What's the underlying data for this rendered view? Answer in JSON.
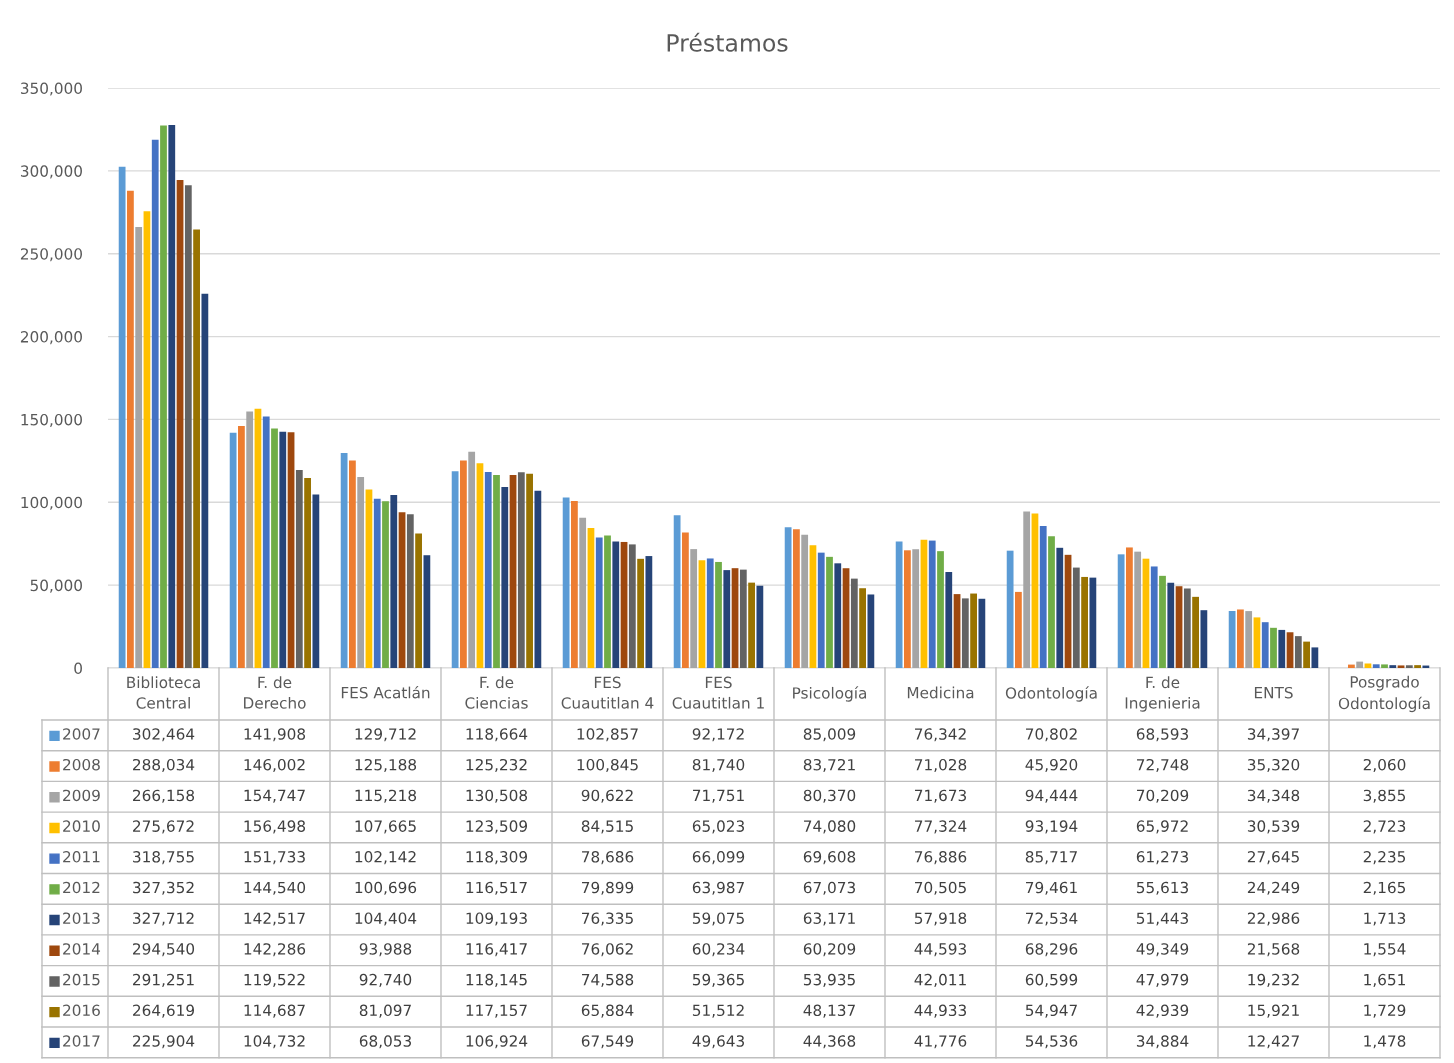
{
  "chart_data": {
    "type": "bar",
    "title": "Préstamos",
    "categories": [
      "Biblioteca\nCentral",
      "F. de\nDerecho",
      "FES Acatlán",
      "F. de\nCiencias",
      "FES\nCuautitlan 4",
      "FES\nCuautitlan 1",
      "Psicología",
      "Medicina",
      "Odontología",
      "F. de\nIngenieria",
      "ENTS",
      "Posgrado\nOdontología"
    ],
    "series": [
      {
        "name": "2007",
        "color": "#5b9bd5",
        "values": [
          302464,
          141908,
          129712,
          118664,
          102857,
          92172,
          85009,
          76342,
          70802,
          68593,
          34397,
          null
        ],
        "value_labels": [
          "302,464",
          "141,908",
          "129,712",
          "118,664",
          "102,857",
          "92,172",
          "85,009",
          "76,342",
          "70,802",
          "68,593",
          "34,397",
          null
        ]
      },
      {
        "name": "2008",
        "color": "#ed7d31",
        "values": [
          288034,
          146002,
          125188,
          125232,
          100845,
          81740,
          83721,
          71028,
          45920,
          72748,
          35320,
          2060
        ],
        "value_labels": [
          "288,034",
          "146,002",
          "125,188",
          "125,232",
          "100,845",
          "81,740",
          "83,721",
          "71,028",
          "45,920",
          "72,748",
          "35,320",
          "2,060"
        ]
      },
      {
        "name": "2009",
        "color": "#a5a5a5",
        "values": [
          266158,
          154747,
          115218,
          130508,
          90622,
          71751,
          80370,
          71673,
          94444,
          70209,
          34348,
          3855
        ],
        "value_labels": [
          "266,158",
          "154,747",
          "115,218",
          "130,508",
          "90,622",
          "71,751",
          "80,370",
          "71,673",
          "94,444",
          "70,209",
          "34,348",
          "3,855"
        ]
      },
      {
        "name": "2010",
        "color": "#ffc000",
        "values": [
          275672,
          156498,
          107665,
          123509,
          84515,
          65023,
          74080,
          77324,
          93194,
          65972,
          30539,
          2723
        ],
        "value_labels": [
          "275,672",
          "156,498",
          "107,665",
          "123,509",
          "84,515",
          "65,023",
          "74,080",
          "77,324",
          "93,194",
          "65,972",
          "30,539",
          "2,723"
        ]
      },
      {
        "name": "2011",
        "color": "#4472c4",
        "values": [
          318755,
          151733,
          102142,
          118309,
          78686,
          66099,
          69608,
          76886,
          85717,
          61273,
          27645,
          2235
        ],
        "value_labels": [
          "318,755",
          "151,733",
          "102,142",
          "118,309",
          "78,686",
          "66,099",
          "69,608",
          "76,886",
          "85,717",
          "61,273",
          "27,645",
          "2,235"
        ]
      },
      {
        "name": "2012",
        "color": "#70ad47",
        "values": [
          327352,
          144540,
          100696,
          116517,
          79899,
          63987,
          67073,
          70505,
          79461,
          55613,
          24249,
          2165
        ],
        "value_labels": [
          "327,352",
          "144,540",
          "100,696",
          "116,517",
          "79,899",
          "63,987",
          "67,073",
          "70,505",
          "79,461",
          "55,613",
          "24,249",
          "2,165"
        ]
      },
      {
        "name": "2013",
        "color": "#264478",
        "values": [
          327712,
          142517,
          104404,
          109193,
          76335,
          59075,
          63171,
          57918,
          72534,
          51443,
          22986,
          1713
        ],
        "value_labels": [
          "327,712",
          "142,517",
          "104,404",
          "109,193",
          "76,335",
          "59,075",
          "63,171",
          "57,918",
          "72,534",
          "51,443",
          "22,986",
          "1,713"
        ]
      },
      {
        "name": "2014",
        "color": "#9e480e",
        "values": [
          294540,
          142286,
          93988,
          116417,
          76062,
          60234,
          60209,
          44593,
          68296,
          49349,
          21568,
          1554
        ],
        "value_labels": [
          "294,540",
          "142,286",
          "93,988",
          "116,417",
          "76,062",
          "60,234",
          "60,209",
          "44,593",
          "68,296",
          "49,349",
          "21,568",
          "1,554"
        ]
      },
      {
        "name": "2015",
        "color": "#636363",
        "values": [
          291251,
          119522,
          92740,
          118145,
          74588,
          59365,
          53935,
          42011,
          60599,
          47979,
          19232,
          1651
        ],
        "value_labels": [
          "291,251",
          "119,522",
          "92,740",
          "118,145",
          "74,588",
          "59,365",
          "53,935",
          "42,011",
          "60,599",
          "47,979",
          "19,232",
          "1,651"
        ]
      },
      {
        "name": "2016",
        "color": "#997300",
        "values": [
          264619,
          114687,
          81097,
          117157,
          65884,
          51512,
          48137,
          44933,
          54947,
          42939,
          15921,
          1729
        ],
        "value_labels": [
          "264,619",
          "114,687",
          "81,097",
          "117,157",
          "65,884",
          "51,512",
          "48,137",
          "44,933",
          "54,947",
          "42,939",
          "15,921",
          "1,729"
        ]
      },
      {
        "name": "2017",
        "color": "#264478",
        "values": [
          225904,
          104732,
          68053,
          106924,
          67549,
          49643,
          44368,
          41776,
          54536,
          34884,
          12427,
          1478
        ],
        "value_labels": [
          "225,904",
          "104,732",
          "68,053",
          "106,924",
          "67,549",
          "49,643",
          "44,368",
          "41,776",
          "54,536",
          "34,884",
          "12,427",
          "1,478"
        ]
      }
    ],
    "ylim": [
      0,
      350000
    ],
    "yticks": [
      {
        "value": 0,
        "label": "0"
      },
      {
        "value": 50000,
        "label": "50,000"
      },
      {
        "value": 100000,
        "label": "100,000"
      },
      {
        "value": 150000,
        "label": "150,000"
      },
      {
        "value": 200000,
        "label": "200,000"
      },
      {
        "value": 250000,
        "label": "250,000"
      },
      {
        "value": 300000,
        "label": "300,000"
      },
      {
        "value": 350000,
        "label": "350,000"
      }
    ],
    "grid": "y",
    "legend": "bottom"
  }
}
